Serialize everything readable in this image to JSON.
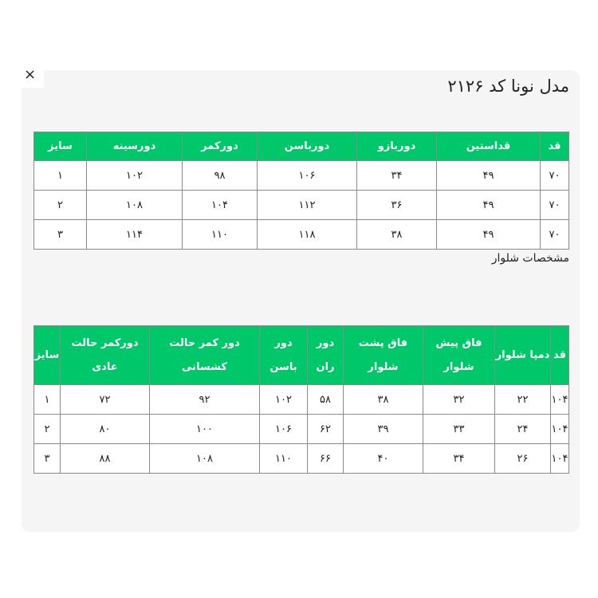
{
  "close_label": "×",
  "title": "مدل نونا کد ۲۱۲۶",
  "colors": {
    "header_green": "#00c86a",
    "panel_bg": "#f5f5f5"
  },
  "shirt_table": {
    "headers": [
      "قد",
      "قداستین",
      "دوربازو",
      "دورباسن",
      "دورکمر",
      "دورسینه",
      "سایز"
    ],
    "rows": [
      [
        "۷۰",
        "۴۹",
        "۳۴",
        "۱۰۶",
        "۹۸",
        "۱۰۲",
        "۱"
      ],
      [
        "۷۰",
        "۴۹",
        "۳۶",
        "۱۱۲",
        "۱۰۴",
        "۱۰۸",
        "۲"
      ],
      [
        "۷۰",
        "۴۹",
        "۳۸",
        "۱۱۸",
        "۱۱۰",
        "۱۱۴",
        "۳"
      ]
    ]
  },
  "pants_label": "مشخصات شلوار",
  "pants_table": {
    "headers": [
      "قد",
      "دمپا شلوار",
      "فاق پیش شلوار",
      "فاق پشت شلوار",
      "دور ران",
      "دور باسن",
      "دور کمر حالت کشسانی",
      "دورکمر حالت عادی",
      "سایز"
    ],
    "rows": [
      [
        "۱۰۴",
        "۲۲",
        "۳۲",
        "۳۸",
        "۵۸",
        "۱۰۲",
        "۹۲",
        "۷۲",
        "۱"
      ],
      [
        "۱۰۴",
        "۲۴",
        "۳۳",
        "۳۹",
        "۶۲",
        "۱۰۶",
        "۱۰۰",
        "۸۰",
        "۲"
      ],
      [
        "۱۰۴",
        "۲۶",
        "۳۴",
        "۴۰",
        "۶۶",
        "۱۱۰",
        "۱۰۸",
        "۸۸",
        "۳"
      ]
    ]
  }
}
